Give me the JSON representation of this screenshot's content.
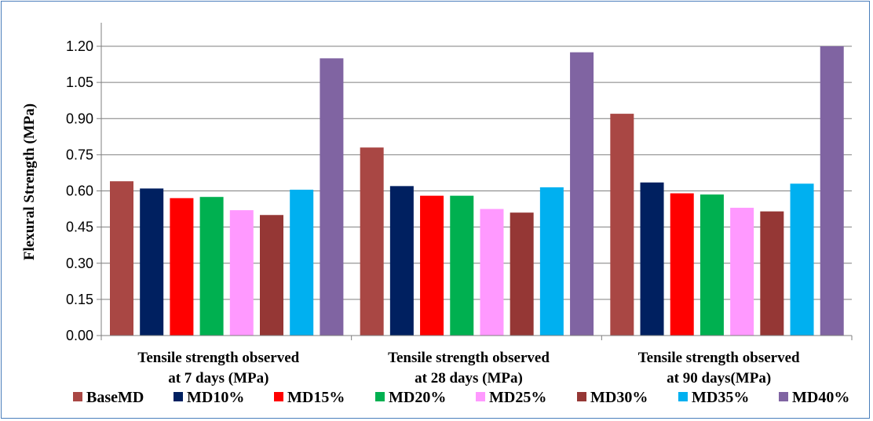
{
  "chart_data": {
    "type": "bar",
    "title": "",
    "ylabel": "Flexural Strength (MPa)",
    "xlabel": "",
    "ylim": [
      0,
      1.2
    ],
    "yticks": [
      "0.00",
      "0.15",
      "0.30",
      "0.45",
      "0.60",
      "0.75",
      "0.90",
      "1.05",
      "1.20"
    ],
    "categories": [
      [
        "Tensile strength observed",
        "at 7 days (MPa)"
      ],
      [
        "Tensile strength observed",
        "at 28 days (MPa)"
      ],
      [
        "Tensile strength observed",
        "at 90 days(MPa)"
      ]
    ],
    "grid": true,
    "legend_position": "bottom",
    "series": [
      {
        "name": "BaseMD",
        "color": "#a94744",
        "values": [
          0.64,
          0.78,
          0.92
        ]
      },
      {
        "name": "MD10%",
        "color": "#002060",
        "values": [
          0.61,
          0.62,
          0.635
        ]
      },
      {
        "name": "MD15%",
        "color": "#ff0000",
        "values": [
          0.57,
          0.58,
          0.59
        ]
      },
      {
        "name": "MD20%",
        "color": "#00b050",
        "values": [
          0.575,
          0.58,
          0.585
        ]
      },
      {
        "name": "MD25%",
        "color": "#ff99ff",
        "values": [
          0.52,
          0.525,
          0.53
        ]
      },
      {
        "name": "MD30%",
        "color": "#953735",
        "values": [
          0.5,
          0.51,
          0.515
        ]
      },
      {
        "name": "MD35%",
        "color": "#00b0f0",
        "values": [
          0.605,
          0.615,
          0.63
        ]
      },
      {
        "name": "MD40%",
        "color": "#8064a2",
        "values": [
          1.15,
          1.175,
          1.2
        ]
      }
    ]
  }
}
